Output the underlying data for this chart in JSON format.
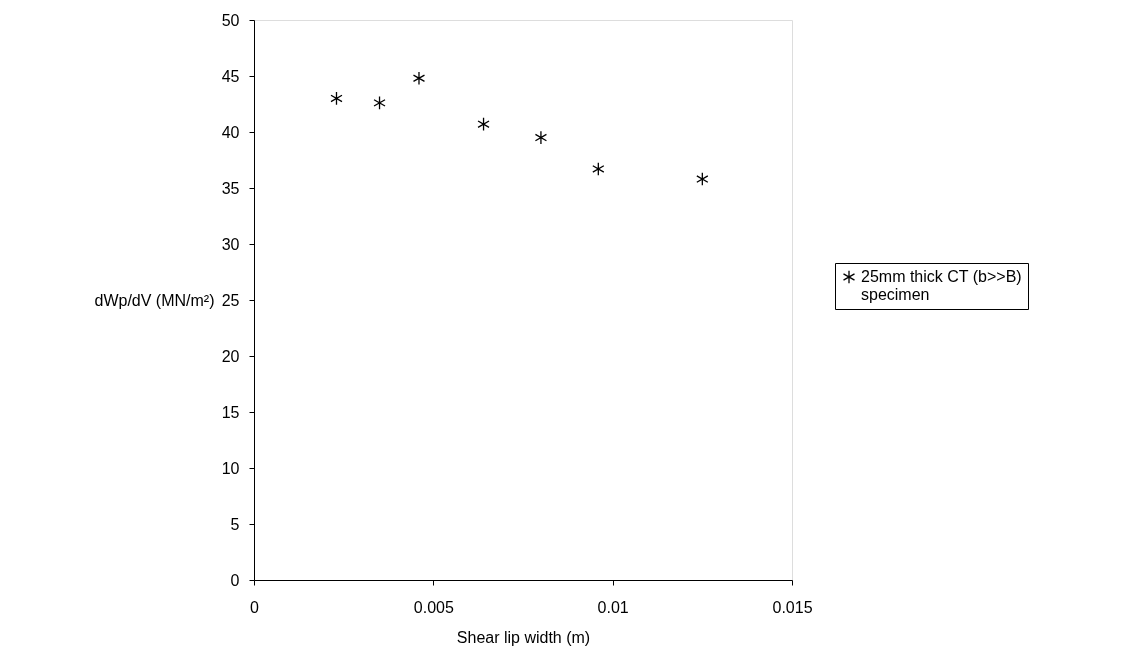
{
  "chart_data": {
    "type": "scatter",
    "xlabel": "Shear lip width (m)",
    "ylabel": "dWp/dV (MN/m²)",
    "x": [
      0.0023,
      0.0035,
      0.0046,
      0.0064,
      0.008,
      0.0096,
      0.0125
    ],
    "series": [
      {
        "name": "25mm thick CT (b>>B) specimen",
        "color": "#000000",
        "values": [
          43.0,
          42.6,
          44.8,
          40.7,
          39.5,
          36.7,
          35.8
        ]
      }
    ],
    "xlim": [
      0,
      0.015
    ],
    "xticks": [
      0,
      0.005,
      0.01,
      0.015
    ],
    "ylim": [
      0,
      50
    ],
    "yticks": [
      0,
      5,
      10,
      15,
      20,
      25,
      30,
      35,
      40,
      45,
      50
    ],
    "grid": false,
    "legend": "right",
    "marker": "cross"
  }
}
